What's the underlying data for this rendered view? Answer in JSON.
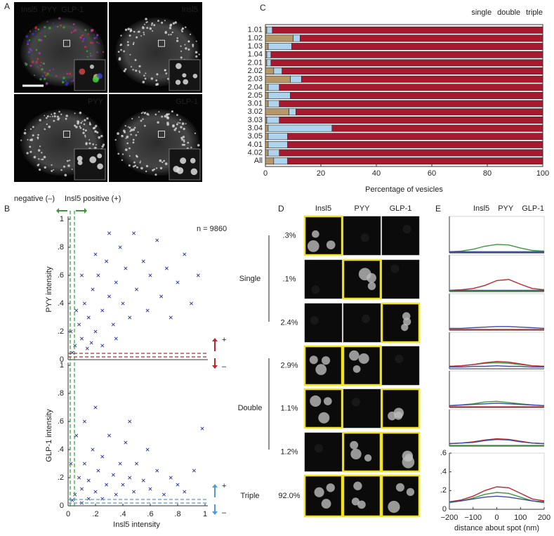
{
  "panel_labels": [
    "A",
    "B",
    "C",
    "D",
    "E"
  ],
  "panel_a": {
    "images": [
      {
        "labels": [
          {
            "text": "Insl5",
            "color": "#3dbb3d"
          },
          {
            "text": "PYY",
            "color": "#e0332f"
          },
          {
            "text": "GLP-1",
            "color": "#5b8fe0"
          }
        ]
      },
      {
        "labels": [
          {
            "text": "Insl5",
            "color": "#ffffff"
          }
        ]
      },
      {
        "labels": [
          {
            "text": "PYY",
            "color": "#ffffff"
          }
        ]
      },
      {
        "labels": [
          {
            "text": "GLP-1",
            "color": "#ffffff"
          }
        ]
      }
    ]
  },
  "chart_data": [
    {
      "type": "bar",
      "orientation": "horizontal",
      "stacked": true,
      "categories": [
        "1.01",
        "1.02",
        "1.03",
        "1.04",
        "2.01",
        "2.02",
        "2.03",
        "2.04",
        "2.05",
        "3.01",
        "3.02",
        "3.03",
        "3.04",
        "3.05",
        "4.01",
        "4.02",
        "All"
      ],
      "series": [
        {
          "name": "single",
          "color": "#b5976a",
          "values": [
            0.5,
            10,
            1,
            0.5,
            0.5,
            3,
            9,
            1,
            1,
            1,
            8.5,
            0.5,
            1,
            1,
            1,
            1,
            3
          ]
        },
        {
          "name": "double",
          "color": "#aed3ee",
          "values": [
            2,
            2.5,
            8.5,
            1.5,
            1.5,
            3,
            4,
            4,
            8,
            4,
            2.5,
            4.5,
            23,
            7,
            7,
            4,
            5
          ]
        },
        {
          "name": "triple",
          "color": "#a6192e",
          "values": [
            97.5,
            87.5,
            90.5,
            98,
            98,
            94,
            87,
            95,
            91,
            95,
            89,
            95,
            76,
            92,
            92,
            95,
            92
          ]
        }
      ],
      "xlim": [
        0,
        100
      ],
      "xticks": [
        0,
        20,
        40,
        60,
        80,
        100
      ],
      "xlabel": "Percentage of vesicles",
      "legend": "top-right"
    },
    {
      "type": "scatter",
      "ylabel": "PYY intensity",
      "color": "#2f3b9c",
      "marker": "x",
      "x": [
        0.05,
        0.08,
        0.1,
        0.12,
        0.15,
        0.18,
        0.2,
        0.22,
        0.25,
        0.28,
        0.3,
        0.33,
        0.35,
        0.38,
        0.4,
        0.42,
        0.45,
        0.48,
        0.5,
        0.55,
        0.58,
        0.6,
        0.65,
        0.68,
        0.72,
        0.75,
        0.8,
        0.85,
        0.9,
        0.95,
        0.03,
        0.06,
        0.1,
        0.14,
        0.2,
        0.3,
        0.02,
        0.17,
        0.25,
        0.35
      ],
      "y": [
        0.1,
        0.25,
        0.15,
        0.4,
        0.3,
        0.5,
        0.2,
        0.6,
        0.35,
        0.7,
        0.45,
        0.25,
        0.55,
        0.8,
        0.4,
        0.65,
        0.3,
        0.9,
        0.5,
        0.7,
        0.35,
        0.6,
        0.85,
        0.45,
        0.65,
        0.3,
        0.55,
        0.75,
        0.4,
        0.6,
        0.05,
        0.35,
        0.6,
        0.08,
        0.75,
        0.9,
        0.2,
        0.12,
        0.1,
        0.15
      ],
      "xlim": [
        0,
        1
      ],
      "ylim": [
        0,
        1
      ],
      "yticks": [
        0,
        {
          "value": 0.2,
          "label": ".2"
        },
        {
          "value": 0.4,
          "label": ".4"
        },
        {
          "value": 0.6,
          "label": ".6"
        },
        {
          "value": 0.8,
          "label": ".8"
        },
        1
      ],
      "annotations": [
        "negative (–)",
        "Insl5 positive (+)",
        "n = 9860"
      ],
      "sign_labels": [
        "+",
        "–"
      ],
      "sign_color": "#c0272d"
    },
    {
      "type": "scatter",
      "ylabel": "GLP-1 intensity",
      "xlabel": "Insl5 intensity",
      "color": "#2f3b9c",
      "marker": "x",
      "x": [
        0.05,
        0.08,
        0.1,
        0.12,
        0.15,
        0.18,
        0.2,
        0.22,
        0.25,
        0.28,
        0.3,
        0.33,
        0.35,
        0.38,
        0.4,
        0.42,
        0.45,
        0.48,
        0.5,
        0.55,
        0.58,
        0.6,
        0.65,
        0.7,
        0.75,
        0.8,
        0.85,
        0.92,
        0.98,
        0.03,
        0.06,
        0.12,
        0.2,
        0.15,
        0.25,
        0.45,
        0.02,
        0.1
      ],
      "y": [
        0.08,
        0.2,
        0.12,
        0.3,
        0.18,
        0.4,
        0.1,
        0.25,
        0.35,
        0.15,
        0.5,
        0.22,
        0.08,
        0.3,
        0.15,
        0.45,
        0.2,
        0.1,
        0.3,
        0.18,
        0.4,
        0.12,
        0.25,
        0.08,
        0.2,
        0.15,
        0.1,
        0.25,
        0.55,
        0.04,
        0.5,
        0.6,
        0.7,
        0.05,
        0.05,
        0.6,
        0.3,
        0.02
      ],
      "xlim": [
        0,
        1
      ],
      "ylim": [
        0,
        1
      ],
      "xticks": [
        0,
        {
          "value": 0.2,
          "label": ".2"
        },
        {
          "value": 0.4,
          "label": ".4"
        },
        {
          "value": 0.6,
          "label": ".6"
        },
        {
          "value": 0.8,
          "label": ".8"
        },
        1
      ],
      "yticks": [
        0,
        {
          "value": 0.2,
          "label": ".2"
        },
        {
          "value": 0.4,
          "label": ".4"
        },
        {
          "value": 0.6,
          "label": ".6"
        },
        {
          "value": 0.8,
          "label": ".8"
        },
        1
      ],
      "sign_labels": [
        "+",
        "–"
      ],
      "sign_color": "#4a9ee0"
    },
    {
      "type": "line",
      "xlabel": "distance about spot (nm)",
      "x": [
        -200,
        -150,
        -100,
        -50,
        0,
        50,
        100,
        150,
        200
      ],
      "xlim": [
        -200,
        200
      ],
      "ylim": [
        0,
        0.6
      ],
      "xticks": [
        {
          "value": -200,
          "label": "−200"
        },
        {
          "value": -100,
          "label": "−100"
        },
        0,
        100,
        200
      ],
      "yticks": [
        0,
        {
          "value": 0.2,
          "label": ".2"
        },
        {
          "value": 0.4,
          "label": ".4"
        },
        {
          "value": 0.6,
          "label": ".6"
        }
      ],
      "series": [
        {
          "name": "Insl5",
          "color": "#3a9a3a"
        },
        {
          "name": "PYY",
          "color": "#c0272d"
        },
        {
          "name": "GLP-1",
          "color": "#3b4ba8"
        }
      ],
      "rows": [
        {
          "values": [
            [
              0.02,
              0.03,
              0.06,
              0.11,
              0.14,
              0.13,
              0.08,
              0.04,
              0.03
            ],
            [
              0.01,
              0.01,
              0.01,
              0.01,
              0.01,
              0.01,
              0.01,
              0.01,
              0.01
            ],
            [
              0.02,
              0.02,
              0.02,
              0.02,
              0.02,
              0.02,
              0.02,
              0.02,
              0.02
            ]
          ]
        },
        {
          "values": [
            [
              0.01,
              0.01,
              0.01,
              0.01,
              0.01,
              0.01,
              0.01,
              0.01,
              0.01
            ],
            [
              0.02,
              0.03,
              0.05,
              0.1,
              0.18,
              0.2,
              0.12,
              0.05,
              0.03
            ],
            [
              0.02,
              0.02,
              0.02,
              0.02,
              0.02,
              0.02,
              0.02,
              0.02,
              0.02
            ]
          ]
        },
        {
          "values": [
            [
              0.01,
              0.01,
              0.01,
              0.01,
              0.01,
              0.01,
              0.01,
              0.01,
              0.01
            ],
            [
              0.01,
              0.01,
              0.01,
              0.01,
              0.01,
              0.01,
              0.01,
              0.01,
              0.01
            ],
            [
              0.03,
              0.03,
              0.04,
              0.05,
              0.06,
              0.06,
              0.05,
              0.04,
              0.03
            ]
          ]
        },
        {
          "values": [
            [
              0.04,
              0.05,
              0.07,
              0.09,
              0.1,
              0.09,
              0.07,
              0.05,
              0.04
            ],
            [
              0.04,
              0.05,
              0.07,
              0.1,
              0.12,
              0.11,
              0.08,
              0.05,
              0.04
            ],
            [
              0.03,
              0.03,
              0.04,
              0.04,
              0.05,
              0.04,
              0.04,
              0.03,
              0.03
            ]
          ]
        },
        {
          "values": [
            [
              0.03,
              0.04,
              0.06,
              0.09,
              0.1,
              0.08,
              0.06,
              0.04,
              0.03
            ],
            [
              0.01,
              0.01,
              0.01,
              0.01,
              0.01,
              0.01,
              0.01,
              0.01,
              0.01
            ],
            [
              0.03,
              0.04,
              0.05,
              0.06,
              0.07,
              0.06,
              0.05,
              0.04,
              0.03
            ]
          ]
        },
        {
          "values": [
            [
              0.01,
              0.01,
              0.01,
              0.01,
              0.01,
              0.01,
              0.01,
              0.01,
              0.01
            ],
            [
              0.04,
              0.05,
              0.07,
              0.1,
              0.12,
              0.11,
              0.08,
              0.05,
              0.04
            ],
            [
              0.04,
              0.05,
              0.06,
              0.09,
              0.11,
              0.1,
              0.07,
              0.05,
              0.04
            ]
          ]
        },
        {
          "values": [
            [
              0.07,
              0.09,
              0.12,
              0.16,
              0.18,
              0.17,
              0.13,
              0.09,
              0.07
            ],
            [
              0.08,
              0.1,
              0.14,
              0.2,
              0.24,
              0.23,
              0.17,
              0.11,
              0.09
            ],
            [
              0.08,
              0.09,
              0.11,
              0.13,
              0.14,
              0.13,
              0.11,
              0.09,
              0.08
            ]
          ]
        }
      ]
    }
  ],
  "panel_d": {
    "columns": [
      "Insl5",
      "PYY",
      "GLP-1"
    ],
    "rows": [
      {
        "percent": ".3%",
        "positive": [
          true,
          false,
          false
        ]
      },
      {
        "percent": ".1%",
        "positive": [
          false,
          true,
          false
        ]
      },
      {
        "percent": "2.4%",
        "positive": [
          false,
          false,
          true
        ]
      },
      {
        "percent": "2.9%",
        "positive": [
          true,
          true,
          false
        ]
      },
      {
        "percent": "1.1%",
        "positive": [
          true,
          false,
          true
        ]
      },
      {
        "percent": "1.2%",
        "positive": [
          false,
          true,
          true
        ]
      },
      {
        "percent": "92.0%",
        "positive": [
          true,
          true,
          true
        ]
      }
    ],
    "groups": [
      {
        "label": "Single"
      },
      {
        "label": "Double"
      },
      {
        "label": "Triple"
      }
    ]
  }
}
